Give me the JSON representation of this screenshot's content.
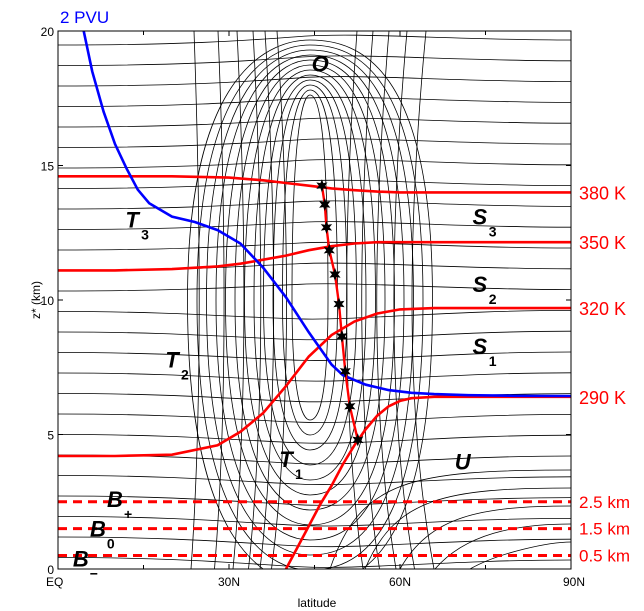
{
  "chart_data": {
    "type": "line",
    "title": "",
    "xlabel": "latitude",
    "ylabel": "z* (km)",
    "xlim": [
      0,
      90
    ],
    "ylim": [
      0,
      20
    ],
    "x_ticks": [
      {
        "value": 0,
        "label": "EQ"
      },
      {
        "value": 30,
        "label": "30N"
      },
      {
        "value": 60,
        "label": "60N"
      },
      {
        "value": 90,
        "label": "90N"
      }
    ],
    "y_ticks": [
      {
        "value": 0,
        "label": "0"
      },
      {
        "value": 5,
        "label": "5"
      },
      {
        "value": 10,
        "label": "10"
      },
      {
        "value": 15,
        "label": "15"
      },
      {
        "value": 20,
        "label": "20"
      }
    ],
    "pv_label": "2 PVU",
    "pv_color": "#0000ff",
    "theta_color": "#ff0000",
    "pv_line": {
      "x": [
        4.5,
        6,
        8,
        10,
        12,
        14,
        16,
        20,
        24,
        28,
        32,
        36,
        40,
        44,
        48,
        50,
        54,
        58,
        62,
        66,
        72,
        80,
        90
      ],
      "y": [
        20.0,
        18.5,
        17.0,
        15.8,
        14.9,
        14.1,
        13.6,
        13.1,
        12.9,
        12.6,
        12.1,
        11.2,
        10.1,
        8.8,
        7.6,
        7.2,
        6.85,
        6.65,
        6.55,
        6.5,
        6.46,
        6.44,
        6.43
      ]
    },
    "isentropes": [
      {
        "name": "380 K",
        "x": [
          0,
          10,
          20,
          30,
          36,
          40,
          44,
          48,
          52,
          56,
          60,
          64,
          70,
          80,
          90
        ],
        "y": [
          14.6,
          14.6,
          14.6,
          14.55,
          14.45,
          14.35,
          14.25,
          14.15,
          14.08,
          14.03,
          14.0,
          14.0,
          14.0,
          14.0,
          14.0
        ]
      },
      {
        "name": "350 K",
        "x": [
          0,
          10,
          20,
          28,
          32,
          36,
          40,
          44,
          48,
          52,
          56,
          60,
          66,
          72,
          80,
          90
        ],
        "y": [
          11.1,
          11.1,
          11.15,
          11.25,
          11.35,
          11.5,
          11.65,
          11.85,
          12.0,
          12.1,
          12.15,
          12.15,
          12.15,
          12.15,
          12.15,
          12.15
        ]
      },
      {
        "name": "320 K",
        "x": [
          0,
          10,
          20,
          28,
          32,
          36,
          40,
          44,
          48,
          52,
          56,
          60,
          66,
          72,
          80,
          90
        ],
        "y": [
          4.2,
          4.2,
          4.25,
          4.6,
          5.1,
          5.8,
          6.8,
          7.9,
          8.7,
          9.2,
          9.5,
          9.65,
          9.7,
          9.7,
          9.7,
          9.7
        ]
      },
      {
        "name": "290 K",
        "x": [
          40,
          42,
          44,
          46,
          48,
          50,
          52,
          54,
          56,
          58,
          60,
          62,
          66,
          72,
          80,
          90
        ],
        "y": [
          0.0,
          0.8,
          1.6,
          2.4,
          3.1,
          3.9,
          4.6,
          5.2,
          5.7,
          6.05,
          6.25,
          6.35,
          6.4,
          6.4,
          6.4,
          6.4
        ]
      }
    ],
    "theta_labels": [
      "380 K",
      "350 K",
      "320 K",
      "290 K"
    ],
    "height_lines": [
      {
        "label": "2.5 km",
        "y": 2.5
      },
      {
        "label": "1.5 km",
        "y": 1.5
      },
      {
        "label": "0.5 km",
        "y": 0.5
      }
    ],
    "tropopause_stars": {
      "x": [
        46.3,
        46.8,
        47.1,
        47.6,
        48.6,
        49.3,
        49.8,
        50.4,
        51.2,
        52.6
      ],
      "y": [
        14.25,
        13.55,
        12.7,
        11.85,
        10.95,
        9.85,
        8.65,
        7.35,
        6.05,
        4.8
      ]
    },
    "regions": [
      {
        "main": "O",
        "sub": "",
        "x": 46,
        "y": 18.5
      },
      {
        "main": "T",
        "sub": "3",
        "x": 13,
        "y": 12.7
      },
      {
        "main": "T",
        "sub": "2",
        "x": 20,
        "y": 7.5
      },
      {
        "main": "T",
        "sub": "1",
        "x": 40,
        "y": 3.8
      },
      {
        "main": "S",
        "sub": "3",
        "x": 74,
        "y": 12.8
      },
      {
        "main": "S",
        "sub": "2",
        "x": 74,
        "y": 10.3
      },
      {
        "main": "S",
        "sub": "1",
        "x": 74,
        "y": 8.0
      },
      {
        "main": "U",
        "sub": "",
        "x": 71,
        "y": 3.7
      },
      {
        "main": "B",
        "sub": "+",
        "x": 10,
        "y": 2.3
      },
      {
        "main": "B",
        "sub": "0",
        "x": 7,
        "y": 1.2
      },
      {
        "main": "B",
        "sub": "−",
        "x": 4,
        "y": 0.1
      }
    ]
  }
}
